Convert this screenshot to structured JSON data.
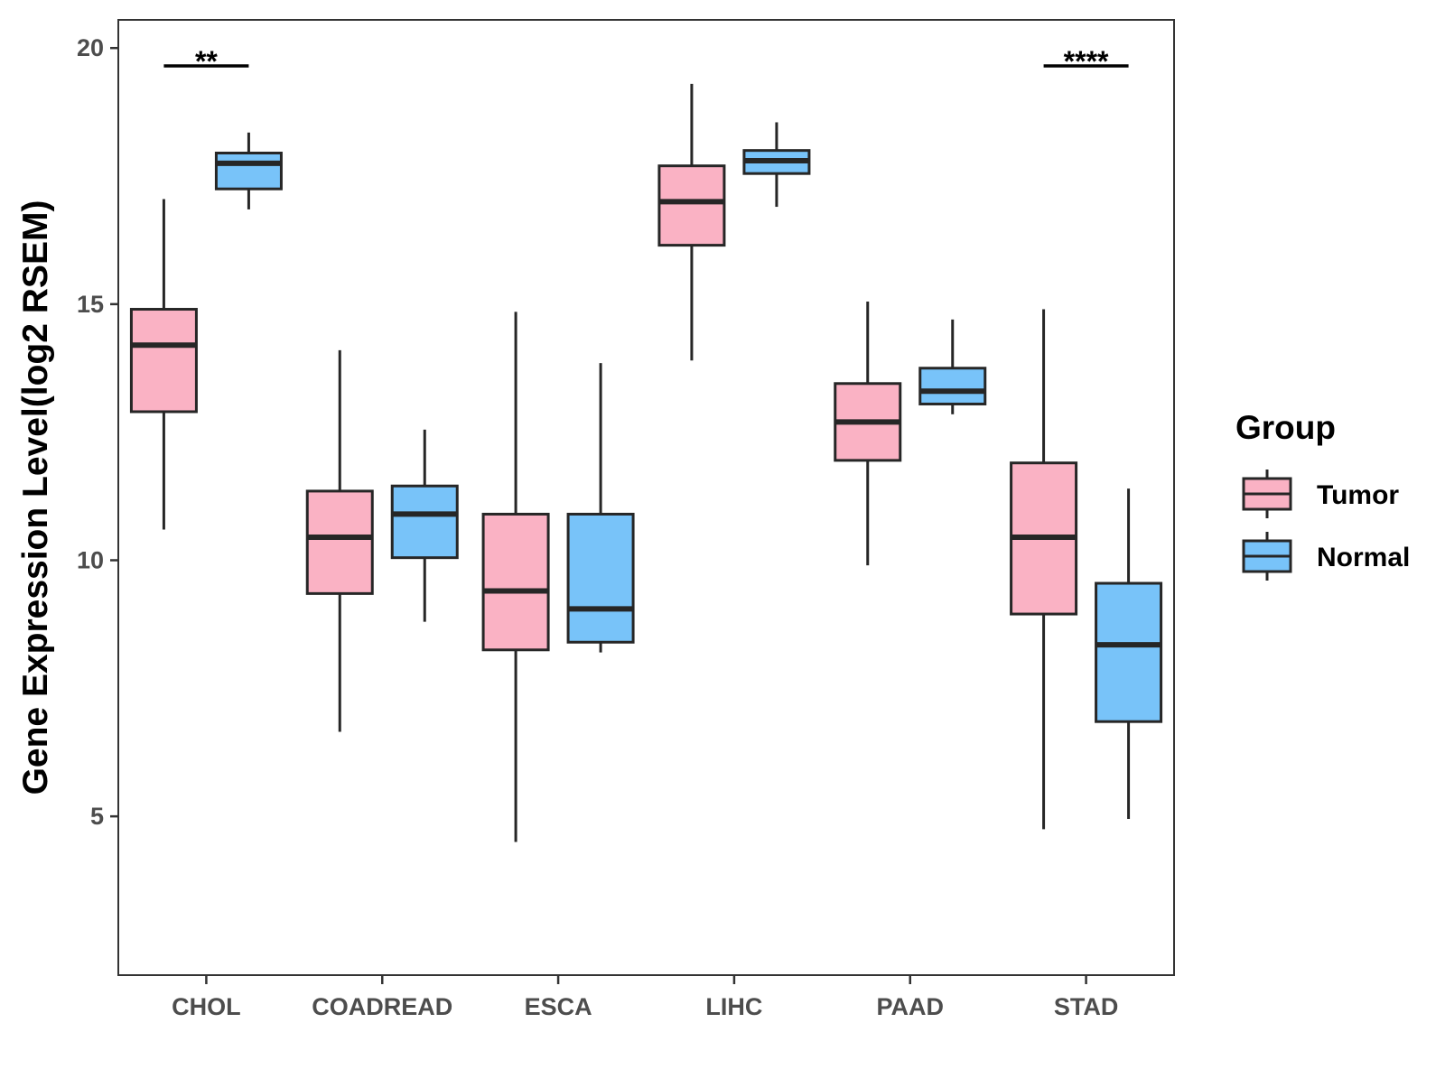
{
  "chart_data": {
    "type": "boxplot",
    "title": "",
    "xlabel": "",
    "ylabel": "Gene Expression Level(log2 RSEM)",
    "ylim": [
      1.9,
      20.55
    ],
    "yticks": [
      5,
      10,
      15,
      20
    ],
    "ytick_labels": [
      "5",
      "10",
      "15",
      "20"
    ],
    "grid": false,
    "legend": {
      "title": "Group",
      "position": "right",
      "entries": [
        {
          "name": "Tumor",
          "color": "#fab2c4"
        },
        {
          "name": "Normal",
          "color": "#78c3f9"
        }
      ]
    },
    "categories": [
      "CHOL",
      "COADREAD",
      "ESCA",
      "LIHC",
      "PAAD",
      "STAD"
    ],
    "series": [
      {
        "name": "Tumor",
        "color": "#fab2c4",
        "boxes": [
          {
            "min": 10.6,
            "q1": 12.9,
            "median": 14.2,
            "q3": 14.9,
            "max": 17.05
          },
          {
            "min": 6.65,
            "q1": 9.35,
            "median": 10.45,
            "q3": 11.35,
            "max": 14.1
          },
          {
            "min": 4.5,
            "q1": 8.25,
            "median": 9.4,
            "q3": 10.9,
            "max": 14.85
          },
          {
            "min": 13.9,
            "q1": 16.15,
            "median": 17.0,
            "q3": 17.7,
            "max": 19.3
          },
          {
            "min": 9.9,
            "q1": 11.95,
            "median": 12.7,
            "q3": 13.45,
            "max": 15.05
          },
          {
            "min": 4.75,
            "q1": 8.95,
            "median": 10.45,
            "q3": 11.9,
            "max": 14.9
          }
        ]
      },
      {
        "name": "Normal",
        "color": "#78c3f9",
        "boxes": [
          {
            "min": 16.85,
            "q1": 17.25,
            "median": 17.75,
            "q3": 17.95,
            "max": 18.35
          },
          {
            "min": 8.8,
            "q1": 10.05,
            "median": 10.9,
            "q3": 11.45,
            "max": 12.55
          },
          {
            "min": 8.2,
            "q1": 8.4,
            "median": 9.05,
            "q3": 10.9,
            "max": 13.85
          },
          {
            "min": 16.9,
            "q1": 17.55,
            "median": 17.8,
            "q3": 18.0,
            "max": 18.55
          },
          {
            "min": 12.85,
            "q1": 13.05,
            "median": 13.3,
            "q3": 13.75,
            "max": 14.7
          },
          {
            "min": 4.95,
            "q1": 6.85,
            "median": 8.35,
            "q3": 9.55,
            "max": 11.4
          }
        ]
      }
    ],
    "annotations": [
      {
        "category": "CHOL",
        "label": "**",
        "y": 19.65
      },
      {
        "category": "STAD",
        "label": "****",
        "y": 19.65
      }
    ]
  }
}
